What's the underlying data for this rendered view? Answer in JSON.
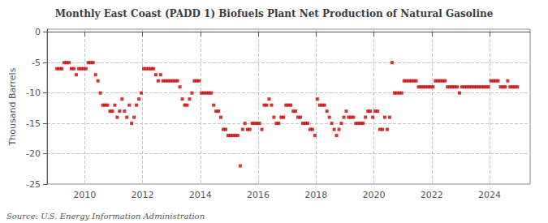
{
  "chart_data": {
    "type": "scatter",
    "title": "Monthly East Coast (PADD 1) Biofuels Plant Net Production of Natural Gasoline",
    "ylabel": "Thousand Barrels",
    "annotation": "Source: U.S. Energy Information Administration",
    "color": "#cc0000",
    "marker": "square",
    "grid": true,
    "xlim": [
      2008.7,
      2025.4
    ],
    "xticks": [
      2010,
      2012,
      2014,
      2016,
      2018,
      2020,
      2022,
      2024
    ],
    "ylim": [
      -25,
      0.5
    ],
    "yticks": [
      0,
      -5,
      -10,
      -15,
      -20,
      -25
    ],
    "x": [
      2009.0416666666667,
      2009.125,
      2009.2083333333333,
      2009.2916666666667,
      2009.375,
      2009.4583333333333,
      2009.5416666666667,
      2009.625,
      2009.7083333333333,
      2009.7916666666667,
      2009.875,
      2009.9583333333333,
      2010.0416666666667,
      2010.125,
      2010.2083333333333,
      2010.2916666666667,
      2010.375,
      2010.4583333333333,
      2010.5416666666667,
      2010.625,
      2010.7083333333333,
      2010.7916666666667,
      2010.875,
      2010.9583333333333,
      2011.0416666666667,
      2011.125,
      2011.2083333333333,
      2011.2916666666667,
      2011.375,
      2011.4583333333333,
      2011.5416666666667,
      2011.625,
      2011.7083333333333,
      2011.7916666666667,
      2011.875,
      2011.9583333333333,
      2012.0416666666667,
      2012.125,
      2012.2083333333333,
      2012.2916666666667,
      2012.375,
      2012.4583333333333,
      2012.5416666666667,
      2012.625,
      2012.7083333333333,
      2012.7916666666667,
      2012.875,
      2012.9583333333333,
      2013.0416666666667,
      2013.125,
      2013.2083333333333,
      2013.2916666666667,
      2013.375,
      2013.4583333333333,
      2013.5416666666667,
      2013.625,
      2013.7083333333333,
      2013.7916666666667,
      2013.875,
      2013.9583333333333,
      2014.0416666666667,
      2014.125,
      2014.2083333333333,
      2014.2916666666667,
      2014.375,
      2014.4583333333333,
      2014.5416666666667,
      2014.625,
      2014.7083333333333,
      2014.7916666666667,
      2014.875,
      2014.9583333333333,
      2015.0416666666667,
      2015.125,
      2015.2083333333333,
      2015.2916666666667,
      2015.375,
      2015.4583333333333,
      2015.5416666666667,
      2015.625,
      2015.7083333333333,
      2015.7916666666667,
      2015.875,
      2015.9583333333333,
      2016.0416666666667,
      2016.125,
      2016.2083333333333,
      2016.2916666666667,
      2016.375,
      2016.4583333333333,
      2016.5416666666667,
      2016.625,
      2016.7083333333333,
      2016.7916666666667,
      2016.875,
      2016.9583333333333,
      2017.0416666666667,
      2017.125,
      2017.2083333333333,
      2017.2916666666667,
      2017.375,
      2017.4583333333333,
      2017.5416666666667,
      2017.625,
      2017.7083333333333,
      2017.7916666666667,
      2017.875,
      2017.9583333333333,
      2018.0416666666667,
      2018.125,
      2018.2083333333333,
      2018.2916666666667,
      2018.375,
      2018.4583333333333,
      2018.5416666666667,
      2018.625,
      2018.7083333333333,
      2018.7916666666667,
      2018.875,
      2018.9583333333333,
      2019.0416666666667,
      2019.125,
      2019.2083333333333,
      2019.2916666666667,
      2019.375,
      2019.4583333333333,
      2019.5416666666667,
      2019.625,
      2019.7083333333333,
      2019.7916666666667,
      2019.875,
      2019.9583333333333,
      2020.0416666666667,
      2020.125,
      2020.2083333333333,
      2020.2916666666667,
      2020.375,
      2020.4583333333333,
      2020.5416666666667,
      2020.625,
      2020.7083333333333,
      2020.7916666666667,
      2020.875,
      2020.9583333333333,
      2021.0416666666667,
      2021.125,
      2021.2083333333333,
      2021.2916666666667,
      2021.375,
      2021.4583333333333,
      2021.5416666666667,
      2021.625,
      2021.7083333333333,
      2021.7916666666667,
      2021.875,
      2021.9583333333333,
      2022.0416666666667,
      2022.125,
      2022.2083333333333,
      2022.2916666666667,
      2022.375,
      2022.4583333333333,
      2022.5416666666667,
      2022.625,
      2022.7083333333333,
      2022.7916666666667,
      2022.875,
      2022.9583333333333,
      2023.0416666666667,
      2023.125,
      2023.2083333333333,
      2023.2916666666667,
      2023.375,
      2023.4583333333333,
      2023.5416666666667,
      2023.625,
      2023.7083333333333,
      2023.7916666666667,
      2023.875,
      2023.9583333333333,
      2024.0416666666667,
      2024.125,
      2024.2083333333333,
      2024.2916666666667,
      2024.375,
      2024.4583333333333,
      2024.5416666666667,
      2024.625,
      2024.7083333333333,
      2024.7916666666667,
      2024.875,
      2024.9583333333333
    ],
    "values": [
      -6,
      -6,
      -6,
      -5,
      -5,
      -5,
      -6,
      -6,
      -7,
      -6,
      -6,
      -6,
      -6,
      -5,
      -5,
      -5,
      -7,
      -8,
      -10,
      -12,
      -12,
      -12,
      -13,
      -13,
      -12,
      -14,
      -13,
      -11,
      -13,
      -14,
      -12,
      -15,
      -14,
      -12,
      -11,
      -10,
      -6,
      -6,
      -6,
      -6,
      -6,
      -7,
      -8,
      -7,
      -8,
      -8,
      -8,
      -8,
      -8,
      -8,
      -8,
      -9,
      -11,
      -12,
      -12,
      -11,
      -10,
      -8,
      -8,
      -8,
      -10,
      -10,
      -10,
      -10,
      -10,
      -12,
      -13,
      -13,
      -14,
      -16,
      -16,
      -17,
      -17,
      -17,
      -17,
      -17,
      -22,
      -16,
      -15,
      -16,
      -16,
      -15,
      -15,
      -15,
      -15,
      -16,
      -12,
      -12,
      -11,
      -12,
      -14,
      -15,
      -15,
      -14,
      -14,
      -12,
      -12,
      -12,
      -13,
      -13,
      -14,
      -14,
      -15,
      -15,
      -15,
      -16,
      -16,
      -17,
      -11,
      -12,
      -12,
      -12,
      -13,
      -14,
      -15,
      -16,
      -17,
      -16,
      -15,
      -14,
      -13,
      -14,
      -14,
      -14,
      -15,
      -15,
      -15,
      -15,
      -14,
      -13,
      -13,
      -14,
      -13,
      -13,
      -16,
      -16,
      -14,
      -16,
      -14,
      -5,
      -10,
      -10,
      -10,
      -10,
      -8,
      -8,
      -8,
      -8,
      -8,
      -8,
      -9,
      -9,
      -9,
      -9,
      -9,
      -9,
      -9,
      -8,
      -8,
      -8,
      -8,
      -8,
      -9,
      -9,
      -9,
      -9,
      -9,
      -10,
      -9,
      -9,
      -9,
      -9,
      -9,
      -9,
      -9,
      -9,
      -9,
      -9,
      -9,
      -9,
      -8,
      -8,
      -8,
      -8,
      -9,
      -9,
      -9,
      -8,
      -9,
      -9,
      -9,
      -9
    ]
  }
}
